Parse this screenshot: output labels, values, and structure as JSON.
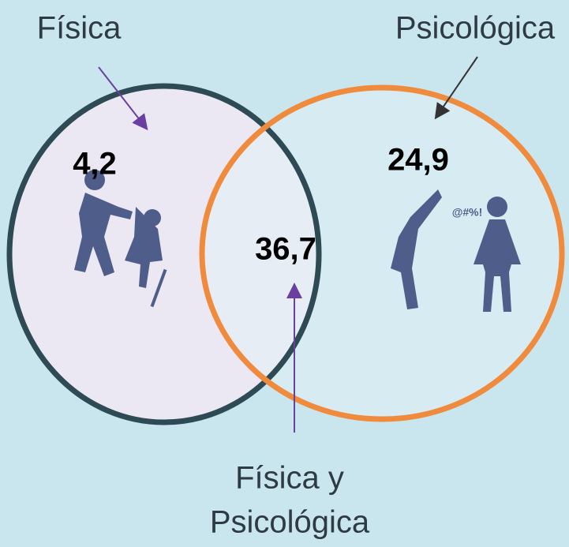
{
  "sets": [
    {
      "label": "Física",
      "value": "4,2"
    },
    {
      "label": "Psicológica",
      "value": "24,9"
    }
  ],
  "intersection": {
    "label_line1": "Física y",
    "label_line2": "Psicológica",
    "value": "36,7"
  }
}
